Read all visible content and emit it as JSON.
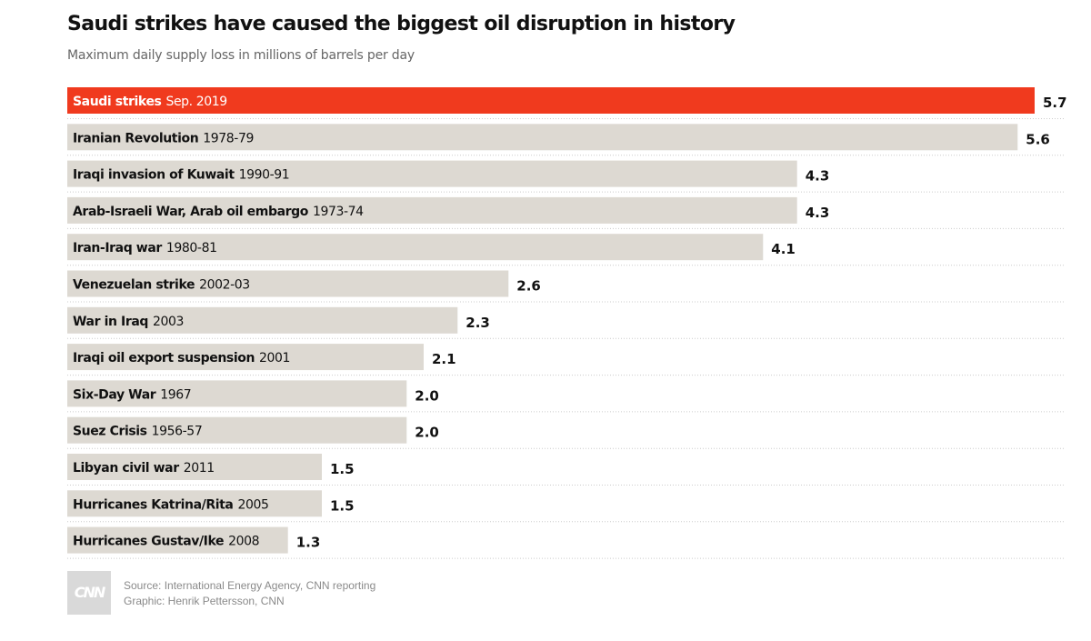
{
  "header": {
    "title": "Saudi strikes have caused the biggest oil disruption in history",
    "subtitle": "Maximum daily supply loss in millions of barrels per day"
  },
  "colors": {
    "highlight": "#f03a1e",
    "bar": "#ddd9d2",
    "gridline": "#cccccc",
    "text": "#111111"
  },
  "chart_data": {
    "type": "bar",
    "orientation": "horizontal",
    "title": "Saudi strikes have caused the biggest oil disruption in history",
    "subtitle": "Maximum daily supply loss in millions of barrels per day",
    "xlim": [
      0,
      5.7
    ],
    "grid": false,
    "categories": [
      {
        "name": "Saudi strikes",
        "period": "Sep. 2019",
        "value": 5.7,
        "value_label": "5.7",
        "highlight": true
      },
      {
        "name": "Iranian Revolution",
        "period": "1978-79",
        "value": 5.6,
        "value_label": "5.6",
        "highlight": false
      },
      {
        "name": "Iraqi invasion of Kuwait",
        "period": "1990-91",
        "value": 4.3,
        "value_label": "4.3",
        "highlight": false
      },
      {
        "name": "Arab-Israeli War, Arab oil embargo",
        "period": "1973-74",
        "value": 4.3,
        "value_label": "4.3",
        "highlight": false
      },
      {
        "name": "Iran-Iraq war",
        "period": "1980-81",
        "value": 4.1,
        "value_label": "4.1",
        "highlight": false
      },
      {
        "name": "Venezuelan strike",
        "period": "2002-03",
        "value": 2.6,
        "value_label": "2.6",
        "highlight": false
      },
      {
        "name": "War in Iraq",
        "period": "2003",
        "value": 2.3,
        "value_label": "2.3",
        "highlight": false
      },
      {
        "name": "Iraqi oil export suspension",
        "period": "2001",
        "value": 2.1,
        "value_label": "2.1",
        "highlight": false
      },
      {
        "name": "Six-Day War",
        "period": "1967",
        "value": 2.0,
        "value_label": "2.0",
        "highlight": false
      },
      {
        "name": "Suez Crisis",
        "period": "1956-57",
        "value": 2.0,
        "value_label": "2.0",
        "highlight": false
      },
      {
        "name": "Libyan civil war",
        "period": "2011",
        "value": 1.5,
        "value_label": "1.5",
        "highlight": false
      },
      {
        "name": "Hurricanes Katrina/Rita",
        "period": "2005",
        "value": 1.5,
        "value_label": "1.5",
        "highlight": false
      },
      {
        "name": "Hurricanes Gustav/Ike",
        "period": "2008",
        "value": 1.3,
        "value_label": "1.3",
        "highlight": false
      }
    ]
  },
  "footer": {
    "logo_text": "CNN",
    "source": "Source: International Energy Agency, CNN reporting",
    "graphic": "Graphic: Henrik Pettersson, CNN"
  }
}
